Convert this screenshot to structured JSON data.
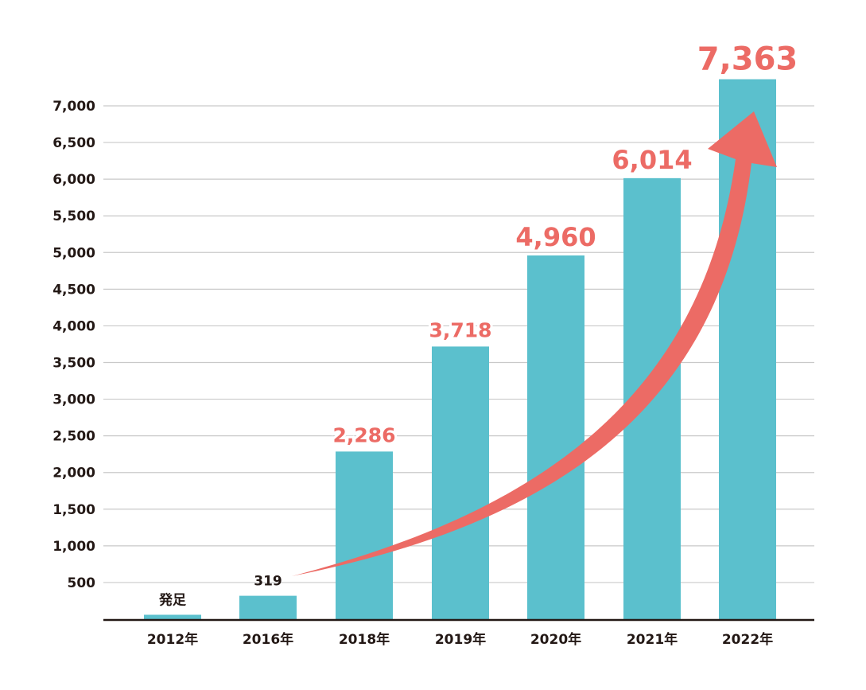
{
  "chart_data": {
    "type": "bar",
    "categories": [
      "2012年",
      "2016年",
      "2018年",
      "2019年",
      "2020年",
      "2021年",
      "2022年"
    ],
    "values": [
      60,
      319,
      2286,
      3718,
      4960,
      6014,
      7363
    ],
    "data_labels": [
      "発足",
      "319",
      "2,286",
      "3,718",
      "4,960",
      "6,014",
      "7,363"
    ],
    "yticks": [
      "500",
      "1,000",
      "1,500",
      "2,000",
      "2,500",
      "3,000",
      "3,500",
      "4,000",
      "4,500",
      "5,000",
      "5,500",
      "6,000",
      "6,500",
      "7,000"
    ],
    "ylim": [
      0,
      7500
    ],
    "grid": true,
    "trend_arrow": true,
    "colors": {
      "bar": "#5bc0cd",
      "accent": "#ec6b65",
      "text": "#231815",
      "grid": "#c9c9c9",
      "axis": "#231815"
    }
  }
}
